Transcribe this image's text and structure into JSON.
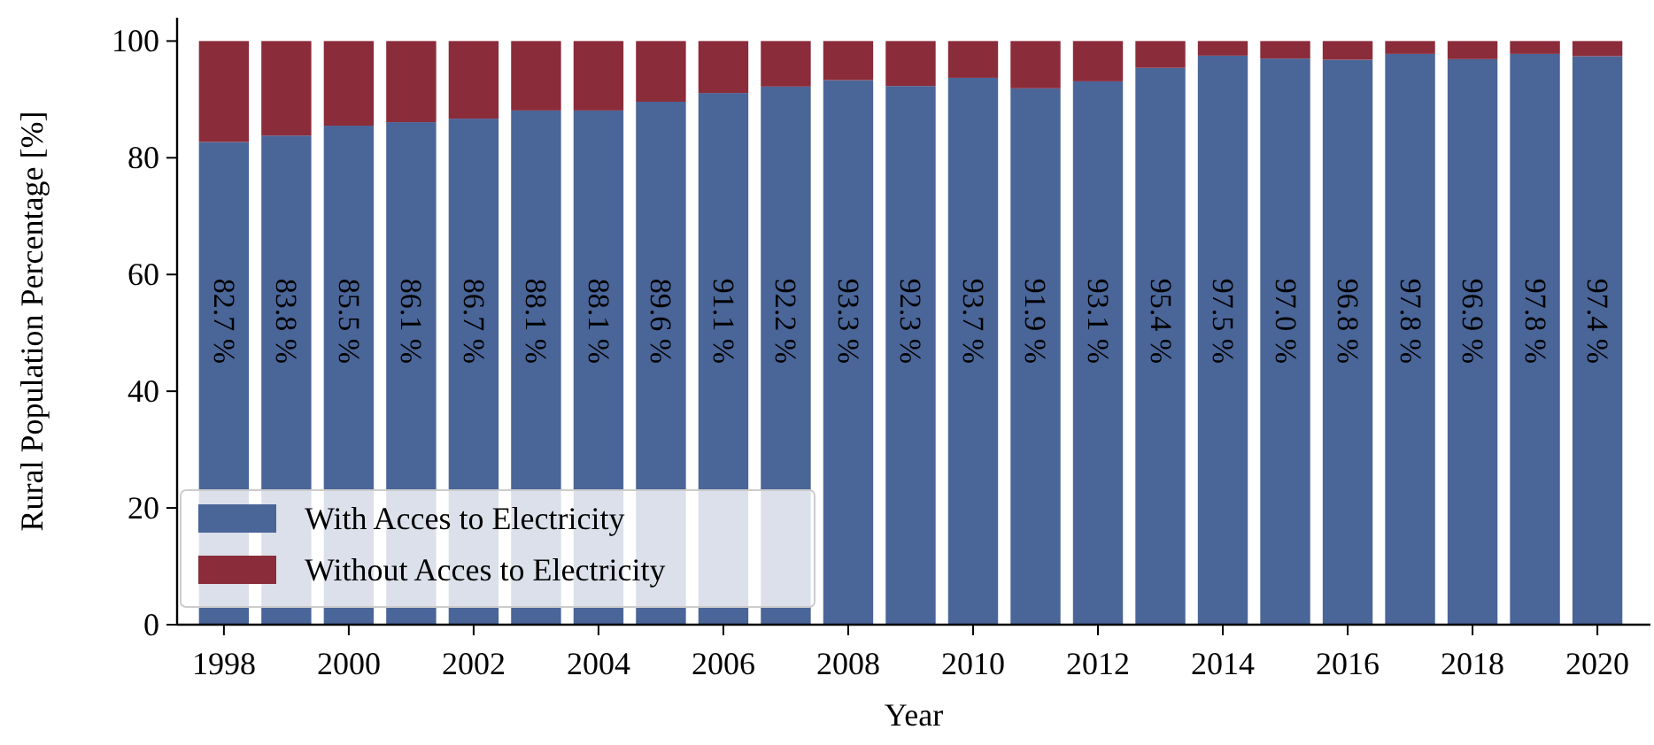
{
  "chart_data": {
    "type": "bar",
    "stacked": true,
    "xlabel": "Year",
    "ylabel": "Rural Population Percentage [%]",
    "x": [
      1998,
      1999,
      2000,
      2001,
      2002,
      2003,
      2004,
      2005,
      2006,
      2007,
      2008,
      2009,
      2010,
      2011,
      2012,
      2013,
      2014,
      2015,
      2016,
      2017,
      2018,
      2019,
      2020
    ],
    "xlim": [
      1997.25,
      2020.85
    ],
    "xticks": [
      1998,
      2000,
      2002,
      2004,
      2006,
      2008,
      2010,
      2012,
      2014,
      2016,
      2018,
      2020
    ],
    "ylim": [
      0,
      104
    ],
    "yticks": [
      0,
      20,
      40,
      60,
      80,
      100
    ],
    "grid": false,
    "legend": "bottom left",
    "series": [
      {
        "name": "With Acces to Electricity",
        "color": "#4a6598",
        "values": [
          82.7,
          83.8,
          85.5,
          86.1,
          86.7,
          88.1,
          88.1,
          89.6,
          91.1,
          92.2,
          93.3,
          92.3,
          93.7,
          91.9,
          93.1,
          95.4,
          97.5,
          97.0,
          96.8,
          97.8,
          96.9,
          97.8,
          97.4
        ],
        "value_labels": [
          "82.7 %",
          "83.8 %",
          "85.5 %",
          "86.1 %",
          "86.7 %",
          "88.1 %",
          "88.1 %",
          "89.6 %",
          "91.1 %",
          "92.2 %",
          "93.3 %",
          "92.3 %",
          "93.7 %",
          "91.9 %",
          "93.1 %",
          "95.4 %",
          "97.5 %",
          "97.0 %",
          "96.8 %",
          "97.8 %",
          "96.9 %",
          "97.8 %",
          "97.4 %"
        ]
      },
      {
        "name": "Without Acces to Electricity",
        "color": "#8b2c3a",
        "values": [
          17.3,
          16.2,
          14.5,
          13.9,
          13.3,
          11.9,
          11.9,
          10.4,
          8.9,
          7.8,
          6.7,
          7.7,
          6.3,
          8.1,
          6.9,
          4.6,
          2.5,
          3.0,
          3.2,
          2.2,
          3.1,
          2.2,
          2.6
        ]
      }
    ]
  }
}
